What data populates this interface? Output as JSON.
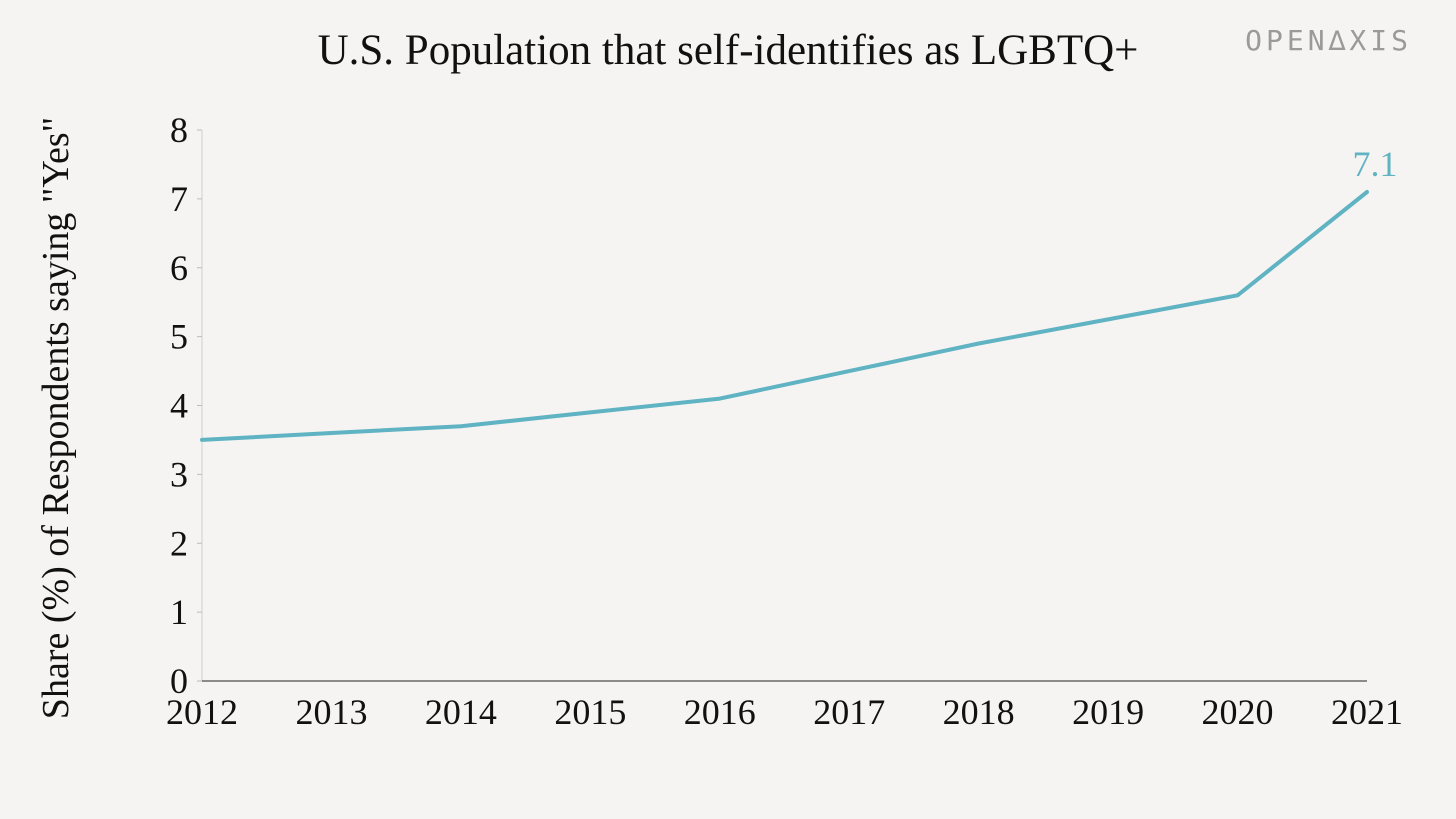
{
  "brand": {
    "name": "OPEN∆XIS"
  },
  "colors": {
    "background": "#f5f4f2",
    "series": "#5fb3c2",
    "axis": "#222222",
    "text": "#111111",
    "brand": "#9a9a9a"
  },
  "chart_data": {
    "type": "line",
    "title": "U.S. Population that self-identifies as LGBTQ+",
    "xlabel": "",
    "ylabel": "Share (%) of Respondents saying \"Yes\"",
    "x": [
      2012,
      2013,
      2014,
      2015,
      2016,
      2017,
      2018,
      2019,
      2020,
      2021
    ],
    "x_tick_labels": [
      "2012",
      "2013",
      "2014",
      "2015",
      "2016",
      "2017",
      "2018",
      "2019",
      "2020",
      "2021"
    ],
    "y_ticks": [
      0,
      1,
      2,
      3,
      4,
      5,
      6,
      7,
      8
    ],
    "ylim": [
      0,
      8
    ],
    "grid": false,
    "series": [
      {
        "values": [
          3.5,
          3.6,
          3.7,
          3.9,
          4.1,
          4.5,
          4.9,
          5.25,
          5.6,
          7.1
        ]
      }
    ],
    "annotations": [
      {
        "x": 2021,
        "y": 7.1,
        "text": "7.1"
      }
    ]
  }
}
